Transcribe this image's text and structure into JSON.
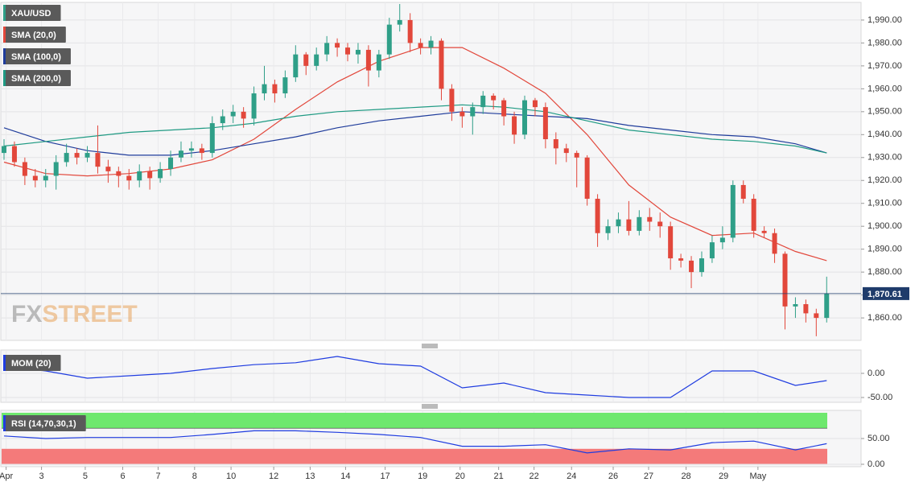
{
  "chart_data": [
    {
      "type": "candlestick",
      "title": "XAU/USD",
      "up_color": "#2f9f88",
      "down_color": "#e2473b",
      "open": [
        1932,
        1935,
        1928,
        1922,
        1920,
        1922,
        1928,
        1932,
        1930,
        1932,
        1926,
        1924,
        1922,
        1920,
        1924,
        1921,
        1925,
        1930,
        1933,
        1934,
        1932,
        1945,
        1948,
        1950,
        1947,
        1958,
        1962,
        1958,
        1965,
        1975,
        1970,
        1975,
        1980,
        1978,
        1975,
        1977,
        1968,
        1975,
        1988,
        1990,
        1980,
        1978,
        1981,
        1960,
        1950,
        1948,
        1952,
        1957,
        1955,
        1948,
        1940,
        1955,
        1952,
        1938,
        1934,
        1932,
        1930,
        1912,
        1897,
        1900,
        1903,
        1898,
        1904,
        1902,
        1900,
        1886,
        1885,
        1880,
        1886,
        1893,
        1895,
        1918,
        1912,
        1898,
        1897,
        1888,
        1865,
        1866,
        1862,
        1860
      ],
      "high": [
        1938,
        1937,
        1930,
        1925,
        1925,
        1931,
        1936,
        1934,
        1935,
        1944,
        1929,
        1926,
        1925,
        1927,
        1926,
        1928,
        1933,
        1937,
        1937,
        1936,
        1948,
        1951,
        1953,
        1952,
        1961,
        1970,
        1964,
        1968,
        1979,
        1976,
        1978,
        1983,
        1982,
        1980,
        1980,
        1979,
        1977,
        1991,
        1997,
        1993,
        1982,
        1983,
        1982,
        1962,
        1952,
        1954,
        1959,
        1958,
        1956,
        1950,
        1957,
        1956,
        1954,
        1941,
        1936,
        1933,
        1931,
        1914,
        1903,
        1906,
        1911,
        1907,
        1908,
        1906,
        1902,
        1888,
        1887,
        1889,
        1896,
        1900,
        1920,
        1920,
        1914,
        1900,
        1899,
        1889,
        1869,
        1868,
        1864,
        1878
      ],
      "low": [
        1929,
        1926,
        1918,
        1917,
        1917,
        1916,
        1926,
        1927,
        1928,
        1923,
        1919,
        1917,
        1916,
        1917,
        1916,
        1919,
        1922,
        1928,
        1930,
        1929,
        1930,
        1942,
        1945,
        1943,
        1944,
        1955,
        1954,
        1956,
        1963,
        1966,
        1968,
        1972,
        1974,
        1972,
        1971,
        1961,
        1965,
        1973,
        1985,
        1976,
        1975,
        1975,
        1955,
        1946,
        1943,
        1940,
        1949,
        1951,
        1944,
        1936,
        1938,
        1948,
        1934,
        1927,
        1928,
        1917,
        1909,
        1891,
        1894,
        1897,
        1896,
        1896,
        1898,
        1895,
        1881,
        1882,
        1873,
        1878,
        1884,
        1890,
        1893,
        1910,
        1895,
        1895,
        1884,
        1855,
        1860,
        1858,
        1852,
        1858
      ],
      "close": [
        1935,
        1928,
        1922,
        1920,
        1922,
        1928,
        1932,
        1930,
        1932,
        1926,
        1924,
        1922,
        1920,
        1924,
        1921,
        1925,
        1930,
        1933,
        1934,
        1932,
        1945,
        1948,
        1950,
        1947,
        1958,
        1962,
        1958,
        1965,
        1975,
        1970,
        1975,
        1980,
        1978,
        1975,
        1977,
        1968,
        1975,
        1988,
        1990,
        1980,
        1978,
        1981,
        1960,
        1950,
        1948,
        1952,
        1957,
        1955,
        1948,
        1940,
        1955,
        1952,
        1938,
        1934,
        1932,
        1930,
        1912,
        1897,
        1900,
        1903,
        1898,
        1904,
        1902,
        1900,
        1886,
        1885,
        1880,
        1886,
        1893,
        1895,
        1918,
        1912,
        1898,
        1897,
        1888,
        1865,
        1866,
        1862,
        1860,
        1870.61
      ],
      "last_label": "1,870.61",
      "series": [
        {
          "name": "SMA (20,0)",
          "color": "#e2473b",
          "x": [
            0,
            4,
            8,
            12,
            16,
            20,
            24,
            28,
            32,
            36,
            40,
            44,
            48,
            52,
            56,
            60,
            64,
            68,
            72,
            76,
            79
          ],
          "values": [
            1928,
            1923,
            1922,
            1923,
            1925,
            1929,
            1938,
            1951,
            1963,
            1972,
            1978,
            1978,
            1969,
            1958,
            1940,
            1918,
            1904,
            1896,
            1897,
            1889,
            1885
          ]
        },
        {
          "name": "SMA (100,0)",
          "color": "#1f3c9b",
          "x": [
            0,
            4,
            8,
            12,
            16,
            20,
            24,
            28,
            32,
            36,
            40,
            44,
            48,
            52,
            56,
            60,
            64,
            68,
            72,
            76,
            79
          ],
          "values": [
            1943,
            1937,
            1933,
            1931,
            1931,
            1933,
            1936,
            1939,
            1943,
            1946,
            1948,
            1950,
            1949,
            1948,
            1947,
            1944,
            1942,
            1940,
            1939,
            1936,
            1932
          ]
        },
        {
          "name": "SMA (200,0)",
          "color": "#1f9a83",
          "x": [
            0,
            4,
            8,
            12,
            16,
            20,
            24,
            28,
            32,
            36,
            40,
            44,
            48,
            52,
            56,
            60,
            64,
            68,
            72,
            76,
            79
          ],
          "values": [
            1935,
            1937,
            1939,
            1941,
            1942,
            1943,
            1945,
            1948,
            1950,
            1951,
            1952,
            1953,
            1952,
            1950,
            1946,
            1942,
            1940,
            1938,
            1937,
            1935,
            1932
          ]
        }
      ],
      "ylim": [
        1850.2,
        1997.7
      ],
      "yticks": [
        {
          "value": 1860,
          "label": "1,860.00"
        },
        {
          "value": 1870,
          "label": "1,870.00"
        },
        {
          "value": 1880,
          "label": "1,880.00"
        },
        {
          "value": 1890,
          "label": "1,890.00"
        },
        {
          "value": 1900,
          "label": "1,900.00"
        },
        {
          "value": 1910,
          "label": "1,910.00"
        },
        {
          "value": 1920,
          "label": "1,920.00"
        },
        {
          "value": 1930,
          "label": "1,930.00"
        },
        {
          "value": 1940,
          "label": "1,940.00"
        },
        {
          "value": 1950,
          "label": "1,950.00"
        },
        {
          "value": 1960,
          "label": "1,960.00"
        },
        {
          "value": 1970,
          "label": "1,970.00"
        },
        {
          "value": 1980,
          "label": "1,980.00"
        },
        {
          "value": 1990,
          "label": "1,990.00"
        }
      ],
      "xticks": [
        {
          "value": 0.2,
          "label": "Apr"
        },
        {
          "value": 3.6,
          "label": "3"
        },
        {
          "value": 7.8,
          "label": "5"
        },
        {
          "value": 11.4,
          "label": "6"
        },
        {
          "value": 14.8,
          "label": "7"
        },
        {
          "value": 18.3,
          "label": "8"
        },
        {
          "value": 21.8,
          "label": "10"
        },
        {
          "value": 25.9,
          "label": "12"
        },
        {
          "value": 29.4,
          "label": "13"
        },
        {
          "value": 32.8,
          "label": "14"
        },
        {
          "value": 36.6,
          "label": "17"
        },
        {
          "value": 40.2,
          "label": "19"
        },
        {
          "value": 43.8,
          "label": "20"
        },
        {
          "value": 47.5,
          "label": "21"
        },
        {
          "value": 50.9,
          "label": "22"
        },
        {
          "value": 54.5,
          "label": "24"
        },
        {
          "value": 58.5,
          "label": "26"
        },
        {
          "value": 61.9,
          "label": "27"
        },
        {
          "value": 65.5,
          "label": "28"
        },
        {
          "value": 69.1,
          "label": "29"
        },
        {
          "value": 72.4,
          "label": "May"
        }
      ],
      "watermark": [
        "FX",
        "STREET"
      ],
      "grid": true
    },
    {
      "type": "line",
      "series": [
        {
          "name": "MOM (20)",
          "color": "#1f3ce0",
          "x": [
            0,
            4,
            8,
            12,
            16,
            20,
            24,
            28,
            32,
            36,
            40,
            44,
            48,
            52,
            56,
            60,
            64,
            68,
            72,
            76,
            79
          ],
          "values": [
            15,
            5,
            -10,
            -5,
            0,
            10,
            18,
            22,
            35,
            20,
            15,
            -30,
            -20,
            -40,
            -45,
            -50,
            -50,
            5,
            5,
            -25,
            -15
          ]
        }
      ],
      "ylim": [
        -60,
        48.3
      ],
      "yticks": [
        {
          "value": -50,
          "label": "-50.00"
        },
        {
          "value": 0,
          "label": "0.00"
        }
      ],
      "grid": true
    },
    {
      "type": "line",
      "series": [
        {
          "name": "RSI (14,70,30,1)",
          "color": "#1f3ce0",
          "x": [
            0,
            4,
            8,
            12,
            16,
            20,
            24,
            28,
            32,
            36,
            40,
            44,
            48,
            52,
            56,
            60,
            64,
            68,
            72,
            76,
            79
          ],
          "values": [
            55,
            50,
            52,
            52,
            52,
            58,
            65,
            65,
            62,
            58,
            52,
            35,
            35,
            38,
            22,
            30,
            28,
            42,
            45,
            28,
            40
          ]
        }
      ],
      "bands": [
        {
          "from": 70,
          "to": 100,
          "color": "#6ee86e"
        },
        {
          "from": 0,
          "to": 30,
          "color": "#f47a7a"
        }
      ],
      "ylim": [
        -4.7,
        104.7
      ],
      "yticks": [
        {
          "value": 0,
          "label": "0.00"
        },
        {
          "value": 50,
          "label": "50.00"
        }
      ],
      "grid": true
    }
  ]
}
